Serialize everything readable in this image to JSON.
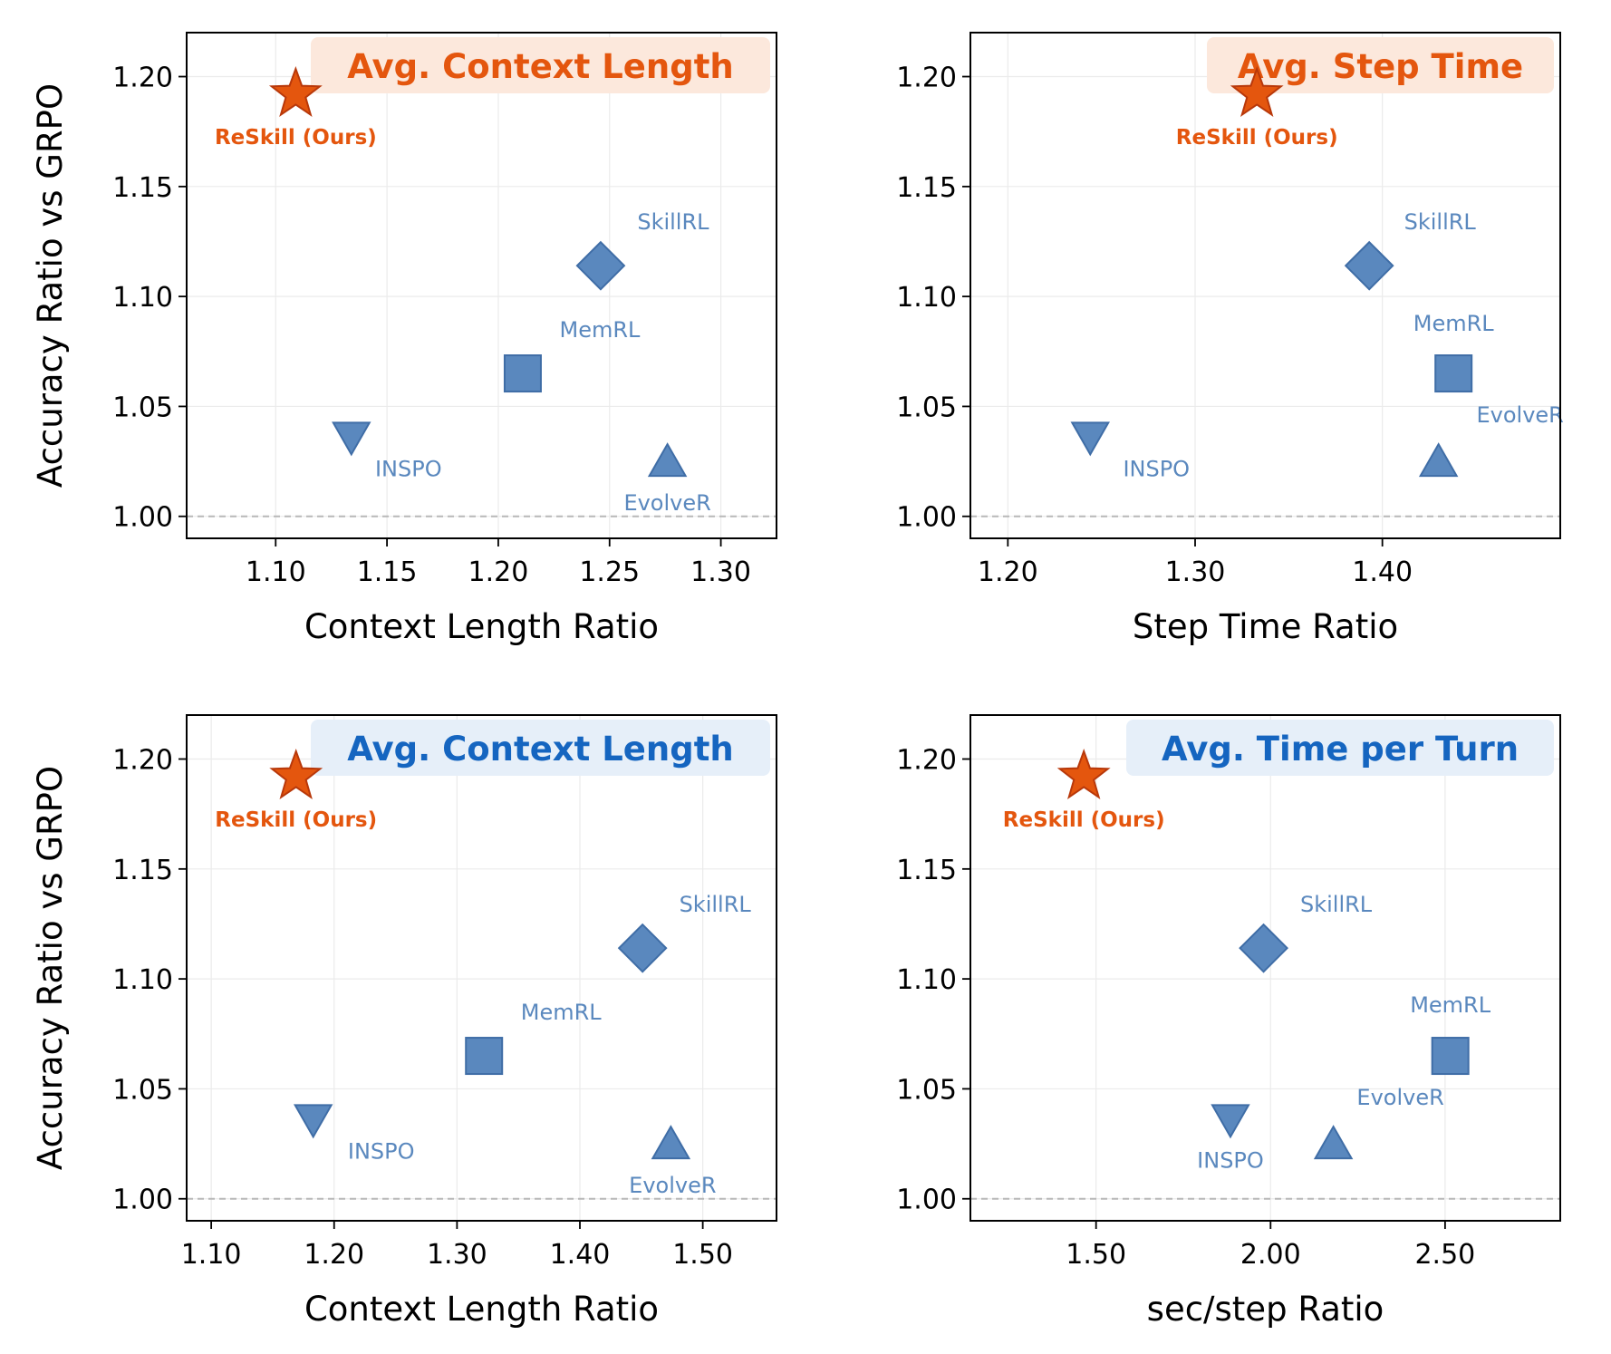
{
  "chart_data": [
    {
      "type": "scatter",
      "title": "Avg. Context Length",
      "title_color": "#e4560e",
      "title_bg": "#fce8dc",
      "xlabel": "Context Length Ratio",
      "ylabel": "Accuracy Ratio vs GRPO",
      "xlim": [
        1.06,
        1.325
      ],
      "ylim": [
        0.99,
        1.22
      ],
      "xticks": [
        1.1,
        1.15,
        1.2,
        1.25,
        1.3
      ],
      "xtick_labels": [
        "1.10",
        "1.15",
        "1.20",
        "1.25",
        "1.30"
      ],
      "yticks": [
        1.0,
        1.05,
        1.1,
        1.15,
        1.2
      ],
      "ytick_labels": [
        "1.00",
        "1.05",
        "1.10",
        "1.15",
        "1.20"
      ],
      "grid": true,
      "reference_line_y": 1.0,
      "points": [
        {
          "label": "ReSkill (Ours)",
          "x": 1.109,
          "y": 1.192,
          "marker": "star",
          "highlight": true
        },
        {
          "label": "SkillRL",
          "x": 1.246,
          "y": 1.114,
          "marker": "diamond"
        },
        {
          "label": "MemRL",
          "x": 1.211,
          "y": 1.065,
          "marker": "square"
        },
        {
          "label": "INSPO",
          "x": 1.134,
          "y": 1.036,
          "marker": "triangle-down"
        },
        {
          "label": "EvolveR",
          "x": 1.276,
          "y": 1.025,
          "marker": "triangle-up"
        }
      ]
    },
    {
      "type": "scatter",
      "title": "Avg. Step Time",
      "title_color": "#e4560e",
      "title_bg": "#fce8dc",
      "xlabel": "Step Time Ratio",
      "ylabel": "",
      "xlim": [
        1.18,
        1.495
      ],
      "ylim": [
        0.99,
        1.22
      ],
      "xticks": [
        1.2,
        1.3,
        1.4
      ],
      "xtick_labels": [
        "1.20",
        "1.30",
        "1.40"
      ],
      "yticks": [
        1.0,
        1.05,
        1.1,
        1.15,
        1.2
      ],
      "ytick_labels": [
        "1.00",
        "1.05",
        "1.10",
        "1.15",
        "1.20"
      ],
      "grid": true,
      "reference_line_y": 1.0,
      "points": [
        {
          "label": "ReSkill (Ours)",
          "x": 1.333,
          "y": 1.192,
          "marker": "star",
          "highlight": true
        },
        {
          "label": "SkillRL",
          "x": 1.393,
          "y": 1.114,
          "marker": "diamond"
        },
        {
          "label": "MemRL",
          "x": 1.438,
          "y": 1.065,
          "marker": "square"
        },
        {
          "label": "INSPO",
          "x": 1.244,
          "y": 1.036,
          "marker": "triangle-down"
        },
        {
          "label": "EvolveR",
          "x": 1.43,
          "y": 1.025,
          "marker": "triangle-up"
        }
      ]
    },
    {
      "type": "scatter",
      "title": "Avg. Context Length",
      "title_color": "#1565c0",
      "title_bg": "#e6eff9",
      "xlabel": "Context Length Ratio",
      "ylabel": "Accuracy Ratio vs GRPO",
      "xlim": [
        1.08,
        1.56
      ],
      "ylim": [
        0.99,
        1.22
      ],
      "xticks": [
        1.1,
        1.2,
        1.3,
        1.4,
        1.5
      ],
      "xtick_labels": [
        "1.10",
        "1.20",
        "1.30",
        "1.40",
        "1.50"
      ],
      "yticks": [
        1.0,
        1.05,
        1.1,
        1.15,
        1.2
      ],
      "ytick_labels": [
        "1.00",
        "1.05",
        "1.10",
        "1.15",
        "1.20"
      ],
      "grid": true,
      "reference_line_y": 1.0,
      "points": [
        {
          "label": "ReSkill (Ours)",
          "x": 1.169,
          "y": 1.192,
          "marker": "star",
          "highlight": true
        },
        {
          "label": "SkillRL",
          "x": 1.451,
          "y": 1.114,
          "marker": "diamond"
        },
        {
          "label": "MemRL",
          "x": 1.322,
          "y": 1.065,
          "marker": "square"
        },
        {
          "label": "INSPO",
          "x": 1.183,
          "y": 1.036,
          "marker": "triangle-down"
        },
        {
          "label": "EvolveR",
          "x": 1.474,
          "y": 1.025,
          "marker": "triangle-up"
        }
      ]
    },
    {
      "type": "scatter",
      "title": "Avg. Time per Turn",
      "title_color": "#1565c0",
      "title_bg": "#e6eff9",
      "xlabel": "sec/step Ratio",
      "ylabel": "",
      "xlim": [
        1.14,
        2.83
      ],
      "ylim": [
        0.99,
        1.22
      ],
      "xticks": [
        1.5,
        2.0,
        2.5
      ],
      "xtick_labels": [
        "1.50",
        "2.00",
        "2.50"
      ],
      "yticks": [
        1.0,
        1.05,
        1.1,
        1.15,
        1.2
      ],
      "ytick_labels": [
        "1.00",
        "1.05",
        "1.10",
        "1.15",
        "1.20"
      ],
      "grid": true,
      "reference_line_y": 1.0,
      "points": [
        {
          "label": "ReSkill (Ours)",
          "x": 1.465,
          "y": 1.192,
          "marker": "star",
          "highlight": true
        },
        {
          "label": "SkillRL",
          "x": 1.98,
          "y": 1.114,
          "marker": "diamond"
        },
        {
          "label": "MemRL",
          "x": 2.515,
          "y": 1.065,
          "marker": "square"
        },
        {
          "label": "INSPO",
          "x": 1.885,
          "y": 1.036,
          "marker": "triangle-down"
        },
        {
          "label": "EvolveR",
          "x": 2.18,
          "y": 1.025,
          "marker": "triangle-up"
        }
      ]
    }
  ],
  "colors": {
    "highlight": "#e4560e",
    "highlight_edge": "#b8380a",
    "baseline": "#5a88be",
    "baseline_edge": "#3f6da6",
    "baseline_text": "#5a88be",
    "grid": "#ebebeb",
    "reference_line": "#b8b8b8"
  }
}
